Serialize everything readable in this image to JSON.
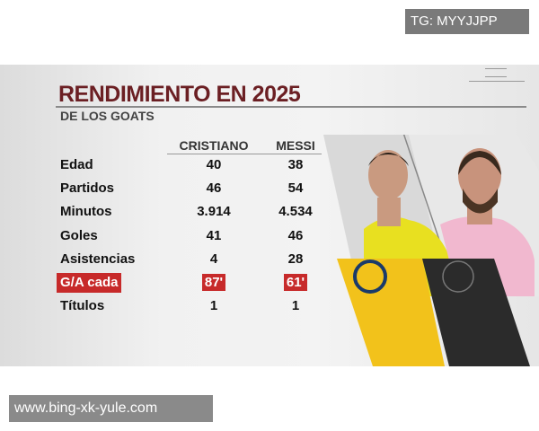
{
  "watermarks": {
    "top": "TG: MYYJJPP",
    "bottom": "www.bing-xk-yule.com"
  },
  "graphic": {
    "title": "RENDIMIENTO EN 2025",
    "subtitle": "DE LOS GOATS",
    "columns": [
      "CRISTIANO",
      "MESSI"
    ],
    "rows": [
      {
        "label": "Edad",
        "values": [
          "40",
          "38"
        ]
      },
      {
        "label": "Partidos",
        "values": [
          "46",
          "54"
        ]
      },
      {
        "label": "Minutos",
        "values": [
          "3.914",
          "4.534"
        ]
      },
      {
        "label": "Goles",
        "values": [
          "41",
          "46"
        ]
      },
      {
        "label": "Asistencias",
        "values": [
          "4",
          "28"
        ]
      },
      {
        "label": "G/A cada",
        "values": [
          "87'",
          "61'"
        ],
        "highlight": true
      },
      {
        "label": "Títulos",
        "values": [
          "1",
          "1"
        ]
      }
    ],
    "colors": {
      "title": "#6b1f23",
      "highlight": "#c72a2a",
      "al_nassr": "#f2c21b",
      "inter_miami": "#2b2b2b"
    }
  }
}
